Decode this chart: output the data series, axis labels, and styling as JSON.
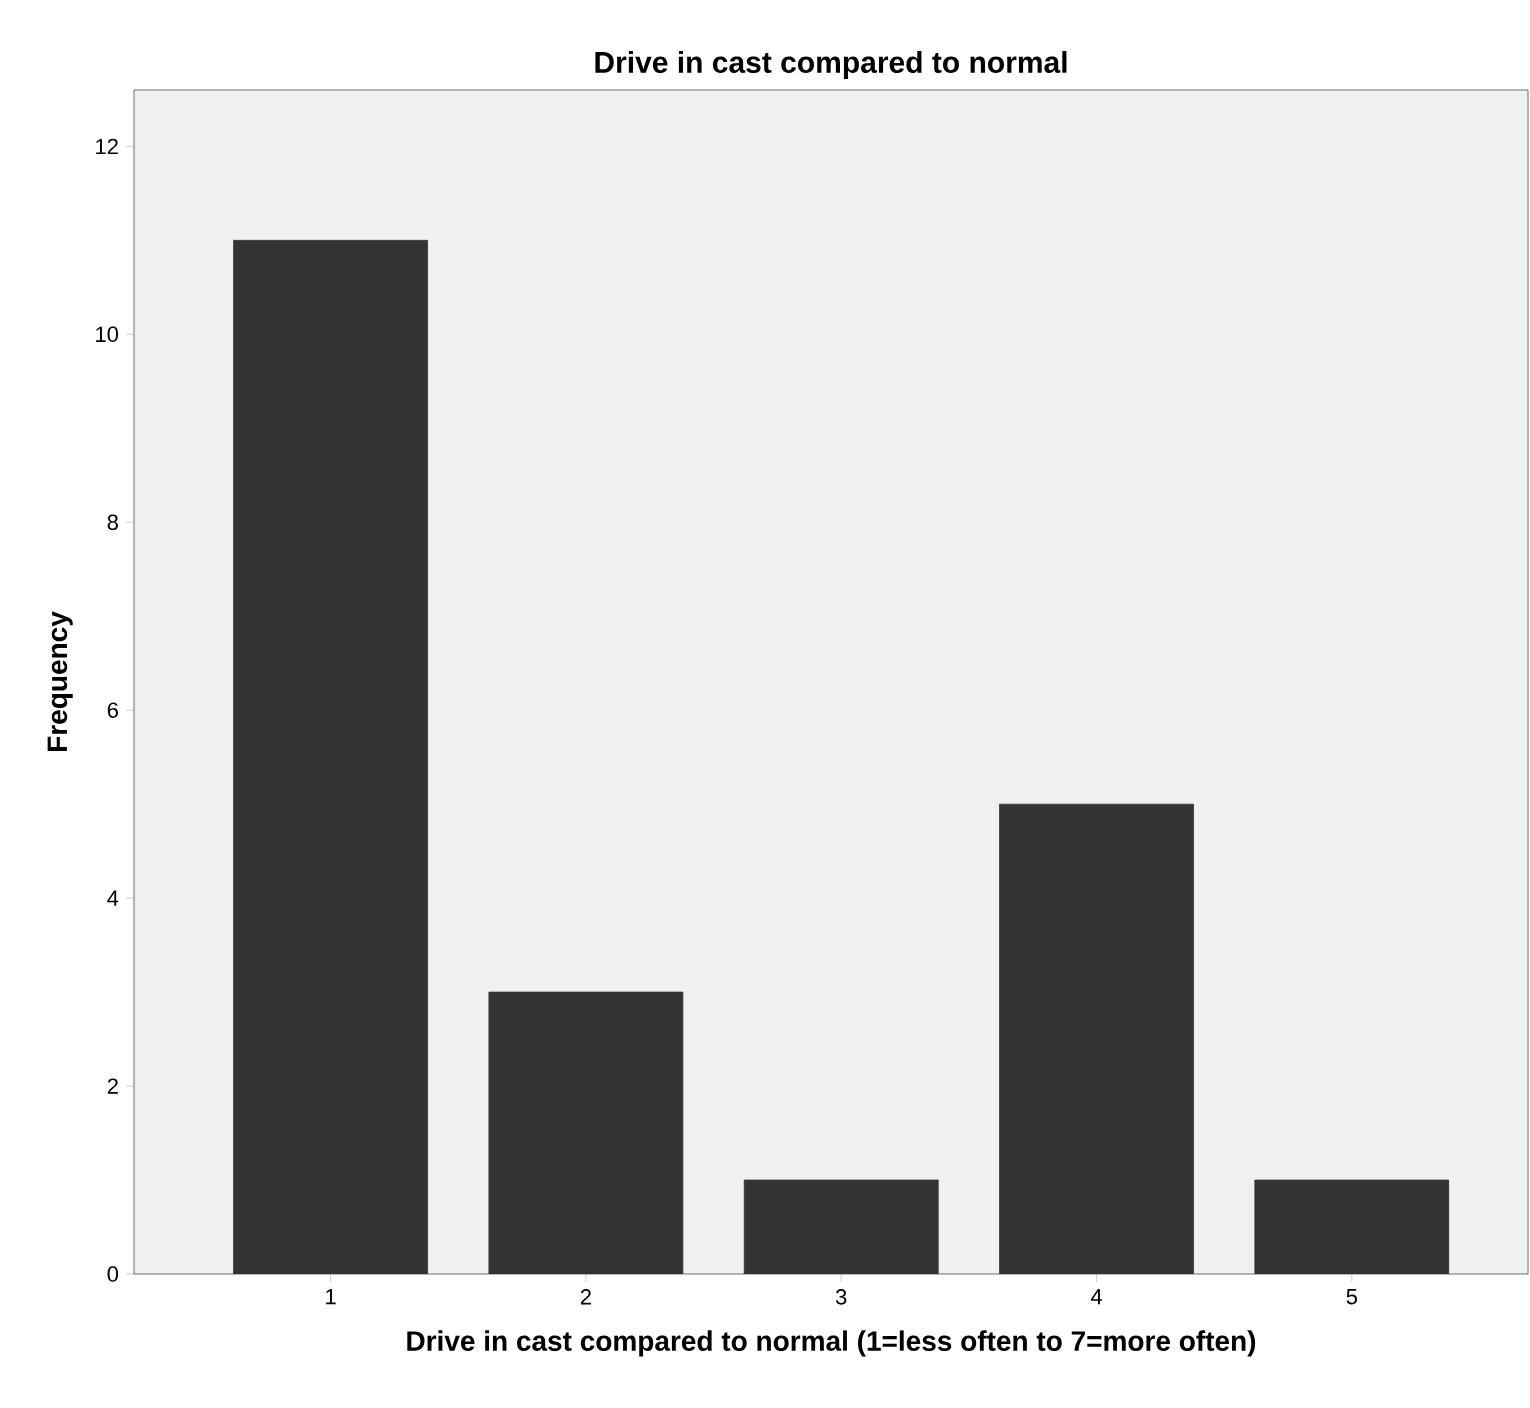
{
  "chart_data": {
    "type": "bar",
    "title": "Drive in cast compared to normal",
    "xlabel": "Drive in cast compared to normal (1=less often to 7=more often)",
    "ylabel": "Frequency",
    "categories": [
      "1",
      "2",
      "3",
      "4",
      "5"
    ],
    "values": [
      11,
      3,
      1,
      5,
      1
    ],
    "color": "#333333",
    "ylim": [
      0,
      12.6
    ],
    "yticks": [
      0,
      2,
      4,
      6,
      8,
      10,
      12
    ],
    "grid": false
  }
}
